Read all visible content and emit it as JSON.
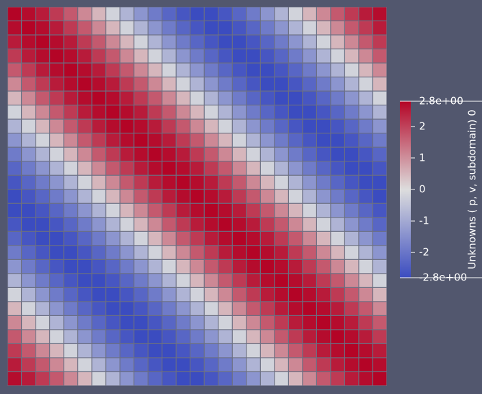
{
  "chart_data": {
    "type": "heatmap",
    "colorbar_title": "Unknowns ( p, v, subdomain) 0",
    "zlim": [
      -2.8,
      2.8
    ],
    "zticks": [
      {
        "value": 2.8,
        "label": "2.8e+00"
      },
      2,
      1,
      0,
      -1,
      -2,
      {
        "value": -2.8,
        "label": "-2.8e+00"
      }
    ],
    "colormap": [
      "#3b4cc0",
      "#dddddd",
      "#b40426"
    ],
    "z": [
      [
        2.8,
        2.7,
        2.5,
        2.1,
        1.7,
        1.1,
        0.5,
        -0.2,
        -0.8,
        -1.4,
        -1.9,
        -2.3,
        -2.6,
        -2.8,
        -2.8,
        -2.6,
        -2.3,
        -1.9,
        -1.4,
        -0.8,
        -0.2,
        0.5,
        1.1,
        1.7,
        2.1,
        2.5,
        2.7
      ],
      [
        2.7,
        2.8,
        2.7,
        2.5,
        2.1,
        1.7,
        1.1,
        0.5,
        -0.2,
        -0.8,
        -1.4,
        -1.9,
        -2.3,
        -2.6,
        -2.8,
        -2.8,
        -2.6,
        -2.3,
        -1.9,
        -1.4,
        -0.8,
        -0.2,
        0.5,
        1.1,
        1.7,
        2.1,
        2.5
      ],
      [
        2.5,
        2.7,
        2.8,
        2.7,
        2.5,
        2.1,
        1.7,
        1.1,
        0.5,
        -0.2,
        -0.8,
        -1.4,
        -1.9,
        -2.3,
        -2.6,
        -2.8,
        -2.8,
        -2.6,
        -2.3,
        -1.9,
        -1.4,
        -0.8,
        -0.2,
        0.5,
        1.1,
        1.7,
        2.1
      ],
      [
        2.1,
        2.5,
        2.7,
        2.8,
        2.7,
        2.5,
        2.1,
        1.7,
        1.1,
        0.5,
        -0.2,
        -0.8,
        -1.4,
        -1.9,
        -2.3,
        -2.6,
        -2.8,
        -2.8,
        -2.6,
        -2.3,
        -1.9,
        -1.4,
        -0.8,
        -0.2,
        0.5,
        1.1,
        1.7
      ],
      [
        1.7,
        2.1,
        2.5,
        2.7,
        2.8,
        2.7,
        2.5,
        2.1,
        1.7,
        1.1,
        0.5,
        -0.2,
        -0.8,
        -1.4,
        -1.9,
        -2.3,
        -2.6,
        -2.8,
        -2.8,
        -2.6,
        -2.3,
        -1.9,
        -1.4,
        -0.8,
        -0.2,
        0.5,
        1.1
      ],
      [
        1.1,
        1.7,
        2.1,
        2.5,
        2.7,
        2.8,
        2.7,
        2.5,
        2.1,
        1.7,
        1.1,
        0.5,
        -0.2,
        -0.8,
        -1.4,
        -1.9,
        -2.3,
        -2.6,
        -2.8,
        -2.8,
        -2.6,
        -2.3,
        -1.9,
        -1.4,
        -0.8,
        -0.2,
        0.5
      ],
      [
        0.5,
        1.1,
        1.7,
        2.1,
        2.5,
        2.7,
        2.8,
        2.7,
        2.5,
        2.1,
        1.7,
        1.1,
        0.5,
        -0.2,
        -0.8,
        -1.4,
        -1.9,
        -2.3,
        -2.6,
        -2.8,
        -2.8,
        -2.6,
        -2.3,
        -1.9,
        -1.4,
        -0.8,
        -0.2
      ],
      [
        -0.2,
        0.5,
        1.1,
        1.7,
        2.1,
        2.5,
        2.7,
        2.8,
        2.7,
        2.5,
        2.1,
        1.7,
        1.1,
        0.5,
        -0.2,
        -0.8,
        -1.4,
        -1.9,
        -2.3,
        -2.6,
        -2.8,
        -2.8,
        -2.6,
        -2.3,
        -1.9,
        -1.4,
        -0.8
      ],
      [
        -0.8,
        -0.2,
        0.5,
        1.1,
        1.7,
        2.1,
        2.5,
        2.7,
        2.8,
        2.7,
        2.5,
        2.1,
        1.7,
        1.1,
        0.5,
        -0.2,
        -0.8,
        -1.4,
        -1.9,
        -2.3,
        -2.6,
        -2.8,
        -2.8,
        -2.6,
        -2.3,
        -1.9,
        -1.4
      ],
      [
        -1.4,
        -0.8,
        -0.2,
        0.5,
        1.1,
        1.7,
        2.1,
        2.5,
        2.7,
        2.8,
        2.7,
        2.5,
        2.1,
        1.7,
        1.1,
        0.5,
        -0.2,
        -0.8,
        -1.4,
        -1.9,
        -2.3,
        -2.6,
        -2.8,
        -2.8,
        -2.6,
        -2.3,
        -1.9
      ],
      [
        -1.9,
        -1.4,
        -0.8,
        -0.2,
        0.5,
        1.1,
        1.7,
        2.1,
        2.5,
        2.7,
        2.8,
        2.7,
        2.5,
        2.1,
        1.7,
        1.1,
        0.5,
        -0.2,
        -0.8,
        -1.4,
        -1.9,
        -2.3,
        -2.6,
        -2.8,
        -2.8,
        -2.6,
        -2.3
      ],
      [
        -2.3,
        -1.9,
        -1.4,
        -0.8,
        -0.2,
        0.5,
        1.1,
        1.7,
        2.1,
        2.5,
        2.7,
        2.8,
        2.7,
        2.5,
        2.1,
        1.7,
        1.1,
        0.5,
        -0.2,
        -0.8,
        -1.4,
        -1.9,
        -2.3,
        -2.6,
        -2.8,
        -2.8,
        -2.6
      ],
      [
        -2.6,
        -2.3,
        -1.9,
        -1.4,
        -0.8,
        -0.2,
        0.5,
        1.1,
        1.7,
        2.1,
        2.5,
        2.7,
        2.8,
        2.7,
        2.5,
        2.1,
        1.7,
        1.1,
        0.5,
        -0.2,
        -0.8,
        -1.4,
        -1.9,
        -2.3,
        -2.6,
        -2.8,
        -2.8
      ],
      [
        -2.8,
        -2.6,
        -2.3,
        -1.9,
        -1.4,
        -0.8,
        -0.2,
        0.5,
        1.1,
        1.7,
        2.1,
        2.5,
        2.7,
        2.8,
        2.7,
        2.5,
        2.1,
        1.7,
        1.1,
        0.5,
        -0.2,
        -0.8,
        -1.4,
        -1.9,
        -2.3,
        -2.6,
        -2.8
      ],
      [
        -2.8,
        -2.8,
        -2.6,
        -2.3,
        -1.9,
        -1.4,
        -0.8,
        -0.2,
        0.5,
        1.1,
        1.7,
        2.1,
        2.5,
        2.7,
        2.8,
        2.7,
        2.5,
        2.1,
        1.7,
        1.1,
        0.5,
        -0.2,
        -0.8,
        -1.4,
        -1.9,
        -2.3,
        -2.6
      ],
      [
        -2.6,
        -2.8,
        -2.8,
        -2.6,
        -2.3,
        -1.9,
        -1.4,
        -0.8,
        -0.2,
        0.5,
        1.1,
        1.7,
        2.1,
        2.5,
        2.7,
        2.8,
        2.7,
        2.5,
        2.1,
        1.7,
        1.1,
        0.5,
        -0.2,
        -0.8,
        -1.4,
        -1.9,
        -2.3
      ],
      [
        -2.3,
        -2.6,
        -2.8,
        -2.8,
        -2.6,
        -2.3,
        -1.9,
        -1.4,
        -0.8,
        -0.2,
        0.5,
        1.1,
        1.7,
        2.1,
        2.5,
        2.7,
        2.8,
        2.7,
        2.5,
        2.1,
        1.7,
        1.1,
        0.5,
        -0.2,
        -0.8,
        -1.4,
        -1.9
      ],
      [
        -1.9,
        -2.3,
        -2.6,
        -2.8,
        -2.8,
        -2.6,
        -2.3,
        -1.9,
        -1.4,
        -0.8,
        -0.2,
        0.5,
        1.1,
        1.7,
        2.1,
        2.5,
        2.7,
        2.8,
        2.7,
        2.5,
        2.1,
        1.7,
        1.1,
        0.5,
        -0.2,
        -0.8,
        -1.4
      ],
      [
        -1.4,
        -1.9,
        -2.3,
        -2.6,
        -2.8,
        -2.8,
        -2.6,
        -2.3,
        -1.9,
        -1.4,
        -0.8,
        -0.2,
        0.5,
        1.1,
        1.7,
        2.1,
        2.5,
        2.7,
        2.8,
        2.7,
        2.5,
        2.1,
        1.7,
        1.1,
        0.5,
        -0.2,
        -0.8
      ],
      [
        -0.8,
        -1.4,
        -1.9,
        -2.3,
        -2.6,
        -2.8,
        -2.8,
        -2.6,
        -2.3,
        -1.9,
        -1.4,
        -0.8,
        -0.2,
        0.5,
        1.1,
        1.7,
        2.1,
        2.5,
        2.7,
        2.8,
        2.7,
        2.5,
        2.1,
        1.7,
        1.1,
        0.5,
        -0.2
      ],
      [
        -0.2,
        -0.8,
        -1.4,
        -1.9,
        -2.3,
        -2.6,
        -2.8,
        -2.8,
        -2.6,
        -2.3,
        -1.9,
        -1.4,
        -0.8,
        -0.2,
        0.5,
        1.1,
        1.7,
        2.1,
        2.5,
        2.7,
        2.8,
        2.7,
        2.5,
        2.1,
        1.7,
        1.1,
        0.5
      ],
      [
        0.5,
        -0.2,
        -0.8,
        -1.4,
        -1.9,
        -2.3,
        -2.6,
        -2.8,
        -2.8,
        -2.6,
        -2.3,
        -1.9,
        -1.4,
        -0.8,
        -0.2,
        0.5,
        1.1,
        1.7,
        2.1,
        2.5,
        2.7,
        2.8,
        2.7,
        2.5,
        2.1,
        1.7,
        1.1
      ],
      [
        1.1,
        0.5,
        -0.2,
        -0.8,
        -1.4,
        -1.9,
        -2.3,
        -2.6,
        -2.8,
        -2.8,
        -2.6,
        -2.3,
        -1.9,
        -1.4,
        -0.8,
        -0.2,
        0.5,
        1.1,
        1.7,
        2.1,
        2.5,
        2.7,
        2.8,
        2.7,
        2.5,
        2.1,
        1.7
      ],
      [
        1.7,
        1.1,
        0.5,
        -0.2,
        -0.8,
        -1.4,
        -1.9,
        -2.3,
        -2.6,
        -2.8,
        -2.8,
        -2.6,
        -2.3,
        -1.9,
        -1.4,
        -0.8,
        -0.2,
        0.5,
        1.1,
        1.7,
        2.1,
        2.5,
        2.7,
        2.8,
        2.7,
        2.5,
        2.1
      ],
      [
        2.1,
        1.7,
        1.1,
        0.5,
        -0.2,
        -0.8,
        -1.4,
        -1.9,
        -2.3,
        -2.6,
        -2.8,
        -2.8,
        -2.6,
        -2.3,
        -1.9,
        -1.4,
        -0.8,
        -0.2,
        0.5,
        1.1,
        1.7,
        2.1,
        2.5,
        2.7,
        2.8,
        2.7,
        2.5
      ],
      [
        2.5,
        2.1,
        1.7,
        1.1,
        0.5,
        -0.2,
        -0.8,
        -1.4,
        -1.9,
        -2.3,
        -2.6,
        -2.8,
        -2.8,
        -2.6,
        -2.3,
        -1.9,
        -1.4,
        -0.8,
        -0.2,
        0.5,
        1.1,
        1.7,
        2.1,
        2.5,
        2.7,
        2.8,
        2.7
      ],
      [
        2.7,
        2.5,
        2.1,
        1.7,
        1.1,
        0.5,
        -0.2,
        -0.8,
        -1.4,
        -1.9,
        -2.3,
        -2.6,
        -2.8,
        -2.8,
        -2.6,
        -2.3,
        -1.9,
        -1.4,
        -0.8,
        -0.2,
        0.5,
        1.1,
        1.7,
        2.1,
        2.5,
        2.7,
        2.8
      ]
    ]
  }
}
